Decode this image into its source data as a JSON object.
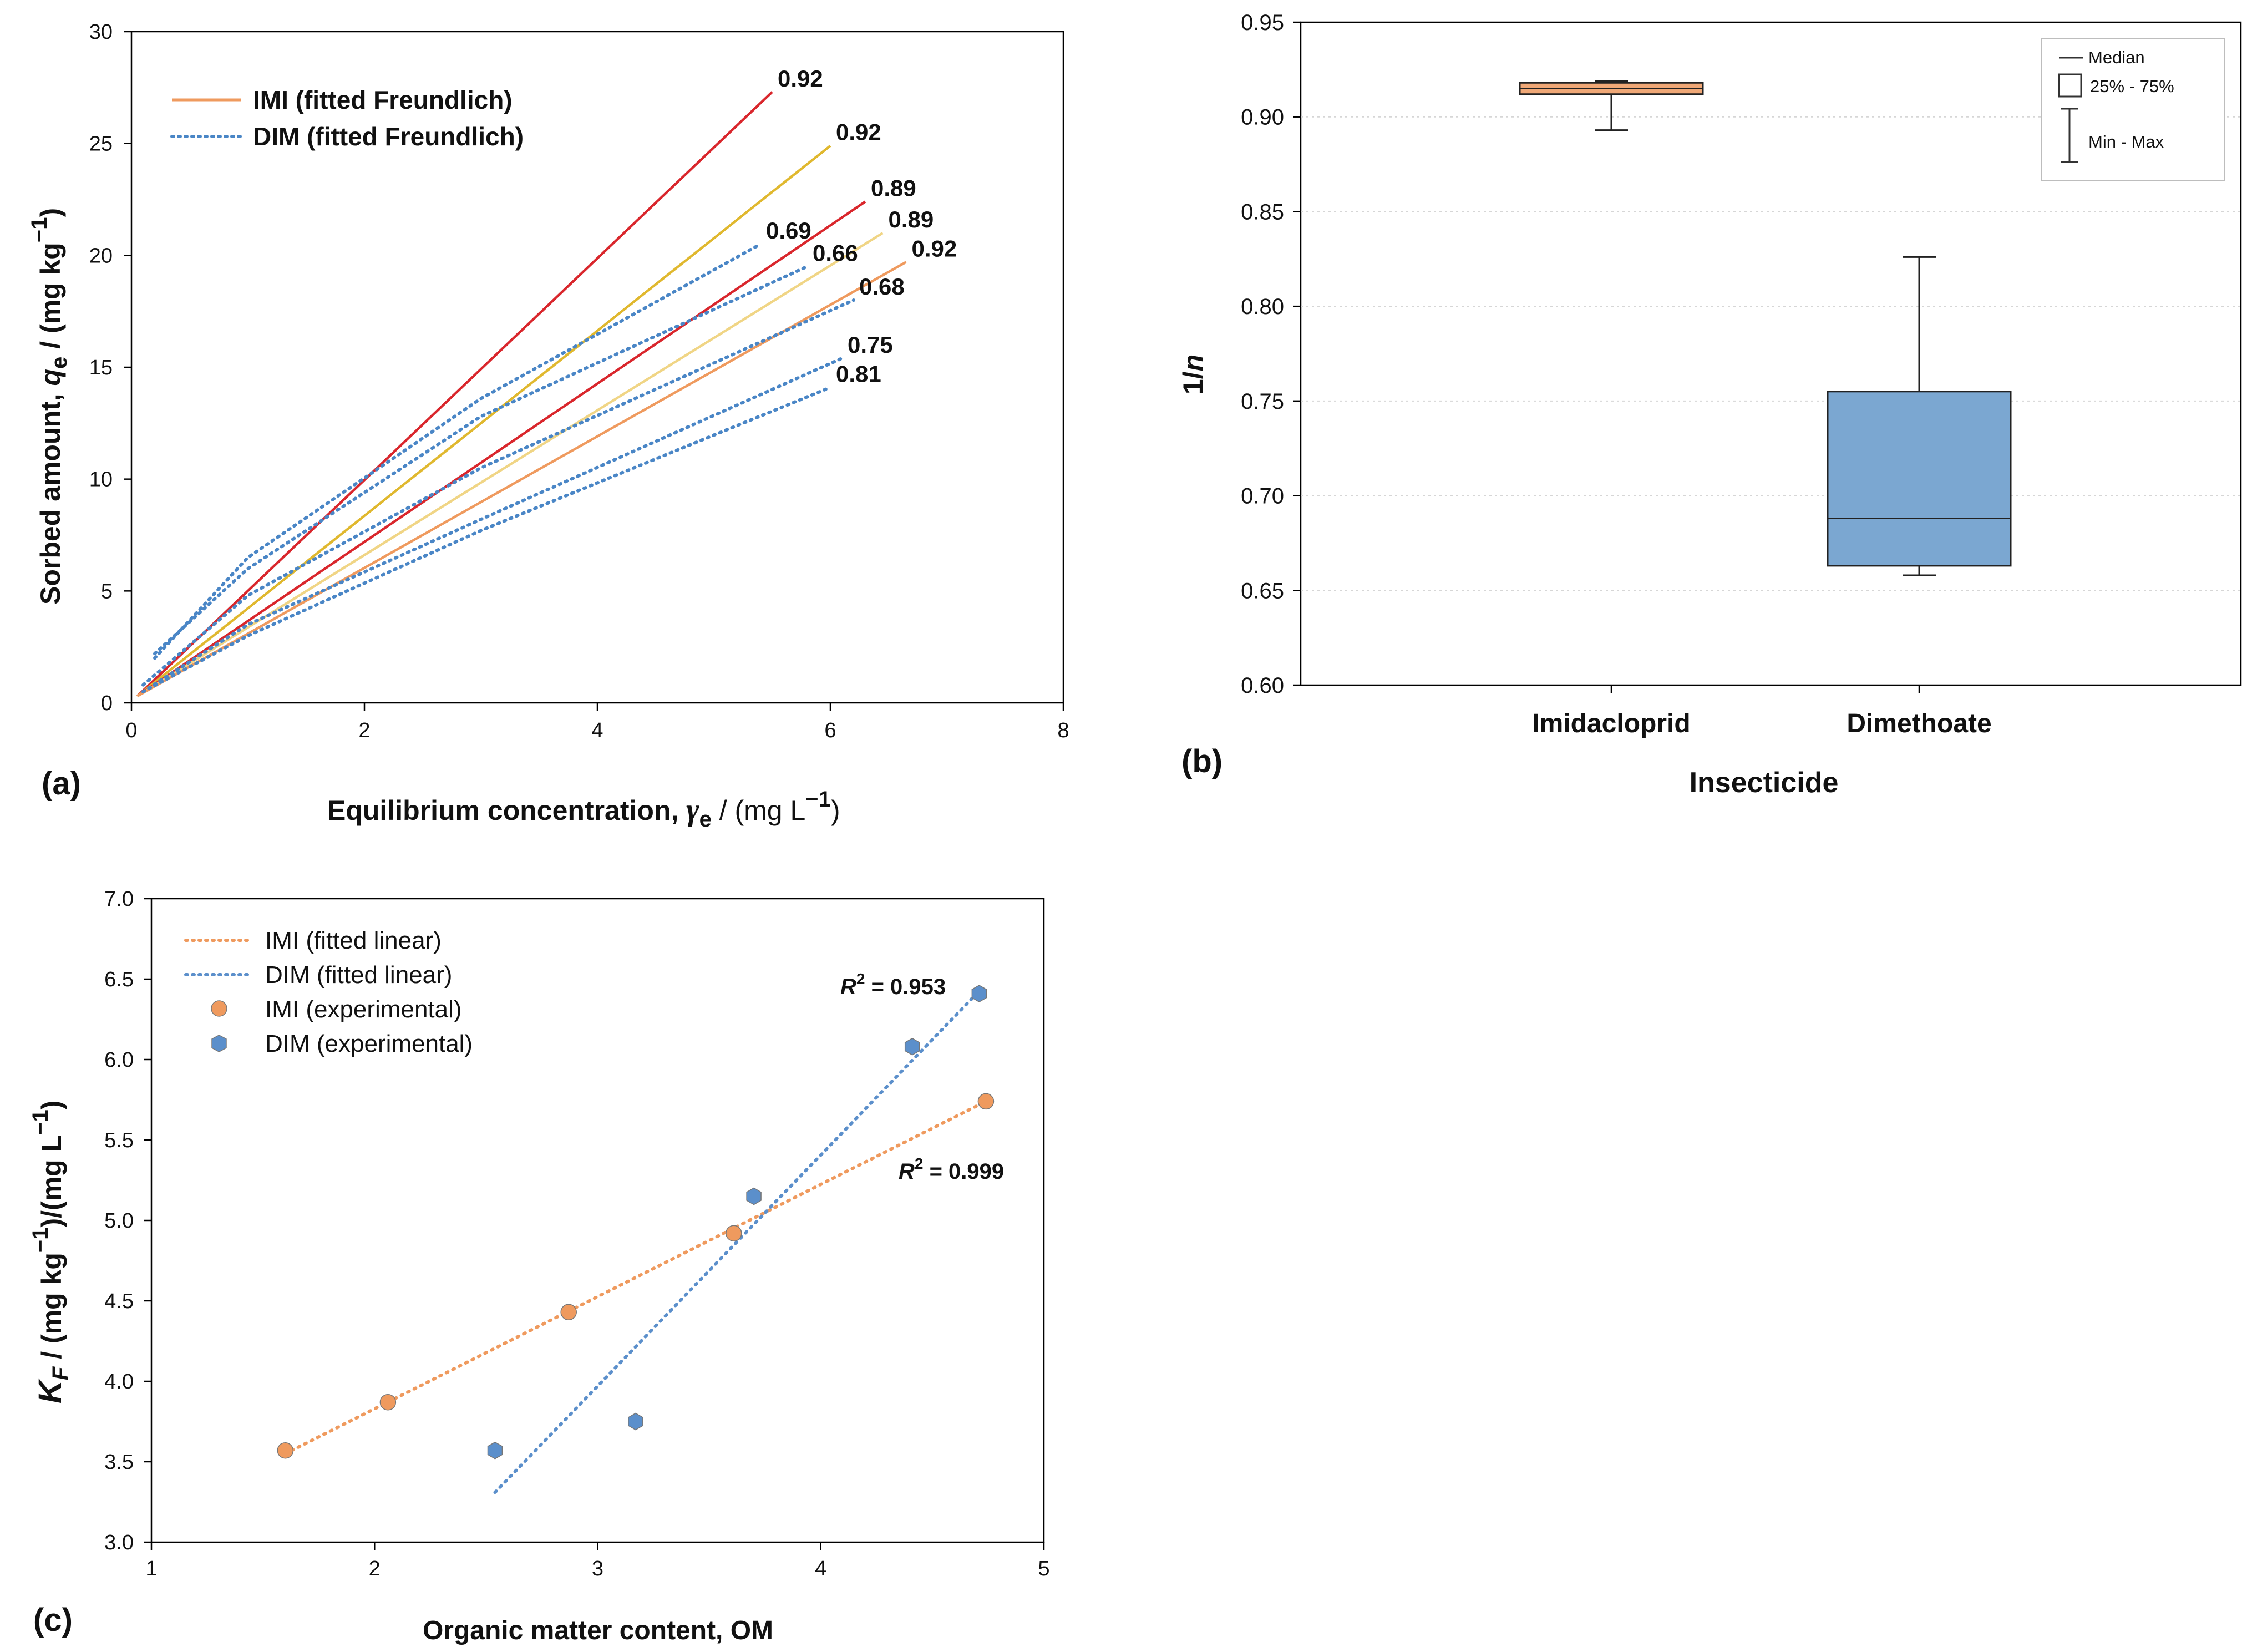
{
  "colors": {
    "imi_dark": "#d9262c",
    "imi_gold": "#e0b82e",
    "imi_light": "#f0d585",
    "imi_orange": "#ef9a5e",
    "dim_blue": "#4a86c6",
    "value_red": "#e8262c",
    "value_blue": "#2a93b5",
    "box_imi": "#f0a877",
    "box_dim": "#7ba7d1",
    "grid": "#cccccc",
    "axis": "#000000"
  },
  "chart_data": [
    {
      "panel": "(a)",
      "type": "line",
      "xlabel_main": "Equilibrium concentration, ",
      "xlabel_symbol": "γ",
      "xlabel_sub": "e",
      "xlabel_unit": " / (mg L",
      "xlabel_sup": "−1",
      "xlabel_close": ")",
      "ylabel_main": "Sorbed amount, ",
      "ylabel_symbol": "q",
      "ylabel_sub": "e",
      "ylabel_unit": " / (mg kg",
      "ylabel_sup": "−1",
      "ylabel_close": ")",
      "xlim": [
        0,
        8
      ],
      "ylim": [
        0,
        30
      ],
      "xticks": [
        "0",
        "2",
        "4",
        "6",
        "8"
      ],
      "yticks": [
        "0",
        "5",
        "10",
        "15",
        "20",
        "25",
        "30"
      ],
      "legend": [
        "IMI (fitted Freundlich)",
        "DIM (fitted Freundlich)"
      ],
      "legend_position": "top-left",
      "series": [
        {
          "group": "IMI",
          "color": "#d9262c",
          "label": "0.92",
          "label_color": "#e8262c",
          "points": [
            [
              0.05,
              0.3
            ],
            [
              5.5,
              27.3
            ]
          ]
        },
        {
          "group": "IMI",
          "color": "#e0b82e",
          "label": "0.92",
          "label_color": "#e8262c",
          "points": [
            [
              0.05,
              0.3
            ],
            [
              6.0,
              24.9
            ]
          ]
        },
        {
          "group": "IMI",
          "color": "#d9262c",
          "label": "0.89",
          "label_color": "#e8262c",
          "points": [
            [
              0.05,
              0.3
            ],
            [
              6.3,
              22.4
            ]
          ]
        },
        {
          "group": "IMI",
          "color": "#f0d585",
          "label": "0.89",
          "label_color": "#e8262c",
          "points": [
            [
              0.05,
              0.3
            ],
            [
              6.45,
              21.0
            ]
          ]
        },
        {
          "group": "IMI",
          "color": "#ef9a5e",
          "label": "0.92",
          "label_color": "#e8262c",
          "points": [
            [
              0.05,
              0.3
            ],
            [
              6.65,
              19.7
            ]
          ]
        },
        {
          "group": "DIM",
          "color": "#4a86c6",
          "label": "0.69",
          "label_color": "#2a93b5",
          "points": [
            [
              0.2,
              2.0
            ],
            [
              1.0,
              6.5
            ],
            [
              3.0,
              13.6
            ],
            [
              5.4,
              20.5
            ]
          ]
        },
        {
          "group": "DIM",
          "color": "#4a86c6",
          "label": "0.66",
          "label_color": "#2a93b5",
          "points": [
            [
              0.2,
              2.2
            ],
            [
              1.0,
              6.0
            ],
            [
              3.0,
              12.8
            ],
            [
              5.8,
              19.5
            ]
          ]
        },
        {
          "group": "DIM",
          "color": "#4a86c6",
          "label": "0.68",
          "label_color": "#2a93b5",
          "points": [
            [
              0.1,
              0.8
            ],
            [
              1.0,
              4.8
            ],
            [
              3.0,
              10.5
            ],
            [
              6.2,
              18.0
            ]
          ]
        },
        {
          "group": "DIM",
          "color": "#4a86c6",
          "label": "0.75",
          "label_color": "#2a93b5",
          "points": [
            [
              0.1,
              0.5
            ],
            [
              1.0,
              3.5
            ],
            [
              3.0,
              8.2
            ],
            [
              6.1,
              15.4
            ]
          ]
        },
        {
          "group": "DIM",
          "color": "#4a86c6",
          "label": "0.81",
          "label_color": "#2a93b5",
          "points": [
            [
              0.1,
              0.5
            ],
            [
              1.0,
              3.0
            ],
            [
              3.0,
              7.7
            ],
            [
              6.0,
              14.1
            ]
          ]
        }
      ]
    },
    {
      "panel": "(b)",
      "type": "box",
      "xlabel": "Insecticide",
      "ylabel": "1/",
      "ylabel_italic": "n",
      "ylim": [
        0.6,
        0.95
      ],
      "yticks": [
        "0.60",
        "0.65",
        "0.70",
        "0.75",
        "0.80",
        "0.85",
        "0.90",
        "0.95"
      ],
      "categories": [
        "Imidacloprid",
        "Dimethoate"
      ],
      "boxes": [
        {
          "name": "Imidacloprid",
          "min": 0.893,
          "q1": 0.912,
          "median": 0.915,
          "q3": 0.918,
          "max": 0.919,
          "color": "#f0a877"
        },
        {
          "name": "Dimethoate",
          "min": 0.658,
          "q1": 0.663,
          "median": 0.688,
          "q3": 0.755,
          "max": 0.826,
          "color": "#7ba7d1"
        }
      ],
      "grid": true,
      "legend": [
        "Median",
        "25% - 75%",
        "Min - Max"
      ],
      "legend_position": "top-right"
    },
    {
      "panel": "(c)",
      "type": "scatter",
      "xlabel": "Organic matter content, OM",
      "ylabel_symbol": "K",
      "ylabel_sub": "F",
      "ylabel_rest": " / (mg kg",
      "ylabel_sup": "−1",
      "ylabel_mid": ")/(mg L",
      "ylabel_sup2": "−1",
      "ylabel_close": ")",
      "xlim": [
        1,
        5
      ],
      "ylim": [
        3.0,
        7.0
      ],
      "xticks": [
        "1",
        "2",
        "3",
        "4",
        "5"
      ],
      "yticks": [
        "3.0",
        "3.5",
        "4.0",
        "4.5",
        "5.0",
        "5.5",
        "6.0",
        "6.5",
        "7.0"
      ],
      "legend": [
        "IMI (fitted linear)",
        "DIM (fitted linear)",
        "IMI (experimental)",
        "DIM (experimental)"
      ],
      "legend_position": "top-left",
      "series": [
        {
          "name": "IMI",
          "color": "#ef9a5e",
          "points": [
            [
              1.6,
              3.57
            ],
            [
              2.06,
              3.87
            ],
            [
              2.87,
              4.43
            ],
            [
              3.61,
              4.92
            ],
            [
              4.74,
              5.74
            ]
          ],
          "fit": [
            [
              1.6,
              3.55
            ],
            [
              4.74,
              5.74
            ]
          ],
          "r2_label": "R",
          "r2_value": " = 0.999"
        },
        {
          "name": "DIM",
          "color": "#5b8fcb",
          "points": [
            [
              2.54,
              3.57
            ],
            [
              3.17,
              3.75
            ],
            [
              3.7,
              5.15
            ],
            [
              4.41,
              6.08
            ],
            [
              4.71,
              6.41
            ]
          ],
          "fit": [
            [
              2.54,
              3.31
            ],
            [
              4.72,
              6.44
            ]
          ],
          "r2_label": "R",
          "r2_value": " = 0.953"
        }
      ]
    }
  ],
  "panel_labels": [
    "(a)",
    "(b)",
    "(c)"
  ]
}
